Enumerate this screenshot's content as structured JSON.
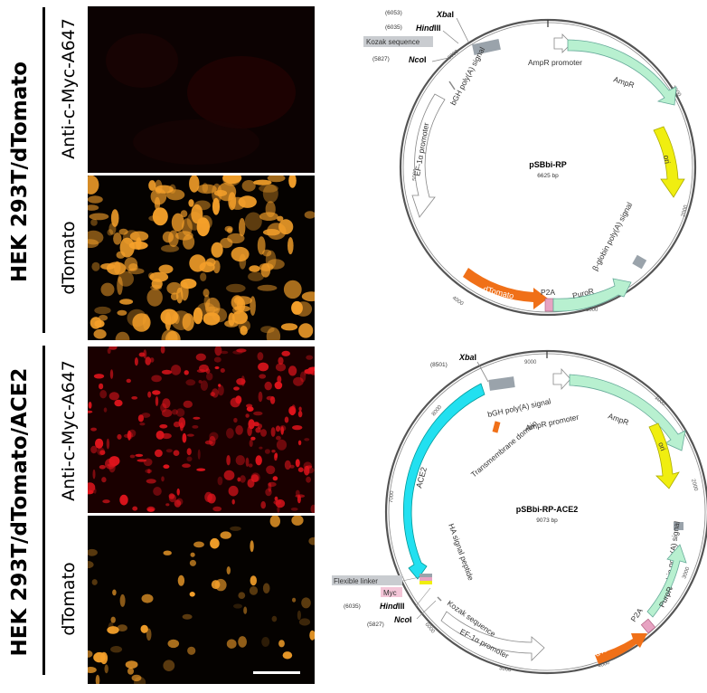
{
  "left": {
    "group1_label": "HEK 293T/dTomato",
    "group2_label": "HEK 293T/dTomato/ACE2",
    "channels": [
      "Anti-c-Myc-A647",
      "dTomato",
      "Anti-c-Myc-A647",
      "dTomato"
    ]
  },
  "colors": {
    "red_channel": "#e0141c",
    "orange_channel": "#f5a02a",
    "ampr": "#b8f0d0",
    "ori": "#f0ee10",
    "dtomato": "#f07018",
    "ace2": "#22e0f0",
    "gray_feature": "#9aa3ab"
  },
  "map1": {
    "name": "pSBbi-RP",
    "size": "6625 bp",
    "sites": [
      {
        "num": "(6053)",
        "enzyme_b": "Xba",
        "enzyme_r": "I"
      },
      {
        "num": "(6035)",
        "enzyme_b": "Hind",
        "enzyme_r": "III"
      },
      {
        "num": "(5827)",
        "enzyme_b": "Nco",
        "enzyme_r": "I"
      }
    ],
    "kozak": "Kozak sequence",
    "features": {
      "bgh": "bGH poly(A) signal",
      "ampr_promoter": "AmpR promoter",
      "ampr": "AmpR",
      "ori": "ori",
      "ef1a": "EF-1α promoter",
      "bglobin": "β-globin poly(A) signal",
      "dtomato": "dTomato",
      "p2a": "P2A",
      "puror": "PuroR"
    },
    "ticks": [
      "6000",
      "1000",
      "2000",
      "3000",
      "4000",
      "5000"
    ]
  },
  "map2": {
    "name": "pSBbi-RP-ACE2",
    "size": "9073 bp",
    "sites": [
      {
        "num": "(8501)",
        "enzyme_b": "Xba",
        "enzyme_r": "I"
      },
      {
        "num": "(6035)",
        "enzyme_b": "Hind",
        "enzyme_r": "III"
      },
      {
        "num": "(5827)",
        "enzyme_b": "Nco",
        "enzyme_r": "I"
      }
    ],
    "flexible_linker": "Flexible linker",
    "myc": "Myc",
    "features": {
      "bgh": "bGH poly(A) signal",
      "ampr_promoter": "AmpR promoter",
      "ampr": "AmpR",
      "ori": "ori",
      "transmembrane": "Transmembrane domain",
      "ace2": "ACE2",
      "ha": "HA signal peptide",
      "kozak": "Kozak sequence",
      "ef1a": "EF-1α promoter",
      "bglobin": "β-globin poly(A) signal",
      "dtomato": "dTomato",
      "p2a": "P2A",
      "puror": "PuroR"
    },
    "ticks": [
      "9000",
      "1000",
      "2000",
      "3000",
      "4000",
      "5000",
      "6000",
      "7000",
      "8000"
    ]
  }
}
